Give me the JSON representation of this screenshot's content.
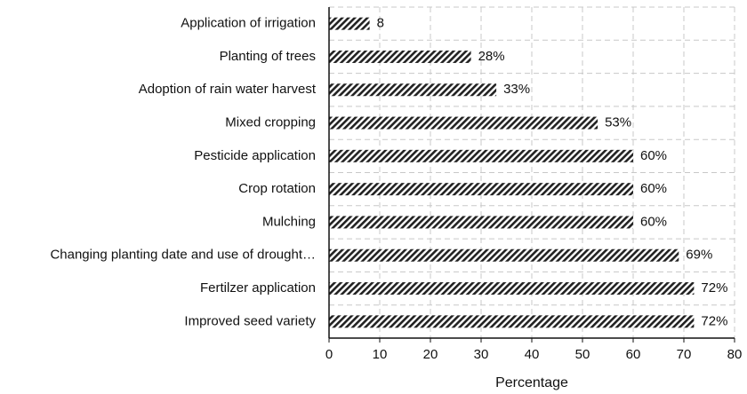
{
  "chart_data": {
    "type": "bar",
    "orientation": "horizontal",
    "categories": [
      "Application of irrigation",
      "Planting of trees",
      "Adoption of rain water harvest",
      "Mixed cropping",
      "Pesticide application",
      "Crop rotation",
      "Mulching",
      "Changing planting date and use of drought…",
      "Fertilzer application",
      "Improved seed variety"
    ],
    "values": [
      8,
      28,
      33,
      53,
      60,
      60,
      60,
      69,
      72,
      72
    ],
    "value_labels": [
      "8",
      "28%",
      "33%",
      "53%",
      "60%",
      "60%",
      "60%",
      "69%",
      "72%",
      "72%"
    ],
    "color": "#222222",
    "xlabel": "Percentage",
    "xlim": [
      0,
      80
    ],
    "xticks": [
      0,
      10,
      20,
      30,
      40,
      50,
      60,
      70,
      80
    ],
    "grid": true
  }
}
